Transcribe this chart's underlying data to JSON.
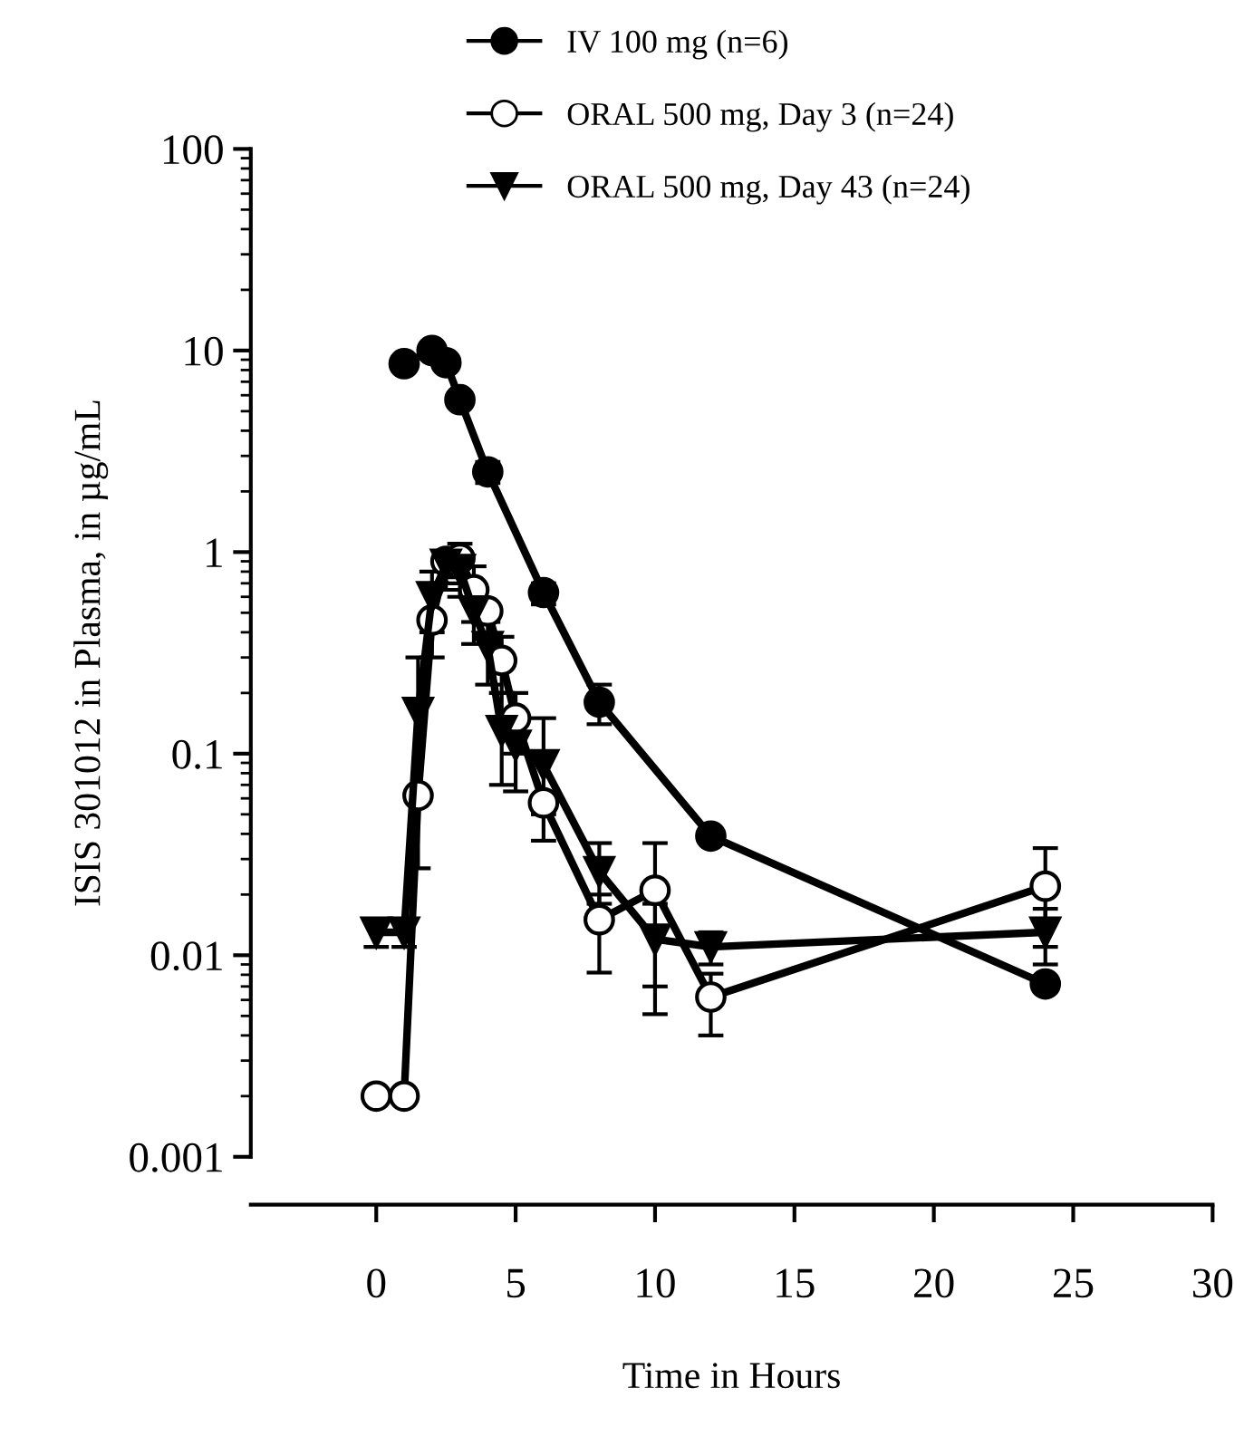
{
  "chart_data": {
    "type": "line",
    "xlabel": "Time in Hours",
    "ylabel": "ISIS 301012 in Plasma, in µg/mL",
    "log": "y",
    "xlim": [
      -4.5,
      30
    ],
    "xticks": [
      0,
      5,
      10,
      15,
      20,
      25,
      30
    ],
    "ylim": [
      0.001,
      100
    ],
    "yticks": [
      0.001,
      0.01,
      0.1,
      1,
      10,
      100
    ],
    "grid": false,
    "legend": "top",
    "line_style": "solid",
    "series": [
      {
        "name": "IV 100 mg (n=6)",
        "color": "#000000",
        "marker": "circle",
        "x": [
          1,
          2,
          2.5,
          3,
          4,
          6,
          8,
          12,
          24
        ],
        "values": [
          8.6,
          10,
          8.7,
          5.7,
          2.5,
          0.63,
          0.18,
          0.039,
          0.0072
        ],
        "errors": [
          null,
          null,
          null,
          null,
          [
            2.2,
            2.8
          ],
          [
            0.55,
            0.7
          ],
          [
            0.14,
            0.22
          ],
          null,
          null
        ]
      },
      {
        "name": "ORAL 500 mg, Day 3 (n=24)",
        "color": "#000000",
        "marker": "circle",
        "x": [
          0,
          1,
          1.5,
          2,
          2.5,
          3,
          3.5,
          4,
          4.5,
          5,
          6,
          8,
          10,
          12,
          24
        ],
        "values": [
          0.002,
          0.002,
          0.062,
          0.46,
          0.9,
          0.93,
          0.65,
          0.51,
          0.29,
          0.15,
          0.057,
          0.015,
          0.021,
          0.0062,
          0.022
        ],
        "errors": [
          null,
          null,
          null,
          [
            0.3,
            0.46
          ],
          [
            0.7,
            1.0
          ],
          [
            0.75,
            1.1
          ],
          [
            0.45,
            0.85
          ],
          null,
          [
            0.2,
            0.38
          ],
          [
            0.1,
            0.2
          ],
          [
            0.037,
            0.057
          ],
          [
            0.0082,
            0.02
          ],
          [
            0.0051,
            0.036
          ],
          [
            0.004,
            0.0081
          ],
          [
            0.011,
            0.034
          ]
        ]
      },
      {
        "name": "ORAL 500 mg, Day 43 (n=24)",
        "color": "#000000",
        "marker": "triangle",
        "x": [
          0,
          1,
          1.5,
          2,
          2.5,
          3,
          3.5,
          4,
          4.5,
          5,
          6,
          8,
          10,
          12,
          24
        ],
        "values": [
          0.013,
          0.013,
          0.16,
          0.6,
          0.87,
          0.82,
          0.51,
          0.34,
          0.13,
          0.11,
          0.088,
          0.026,
          0.012,
          0.011,
          0.013
        ],
        "errors": [
          [
            0.011,
            0.015
          ],
          [
            0.011,
            0.015
          ],
          [
            0.027,
            0.3
          ],
          [
            0.4,
            0.8
          ],
          [
            0.65,
            1.0
          ],
          [
            0.6,
            1.0
          ],
          [
            0.35,
            0.65
          ],
          [
            0.22,
            0.45
          ],
          [
            0.07,
            0.2
          ],
          [
            0.065,
            0.16
          ],
          [
            0.05,
            0.15
          ],
          [
            0.018,
            0.036
          ],
          [
            0.007,
            0.018
          ],
          [
            0.009,
            0.013
          ],
          [
            0.009,
            0.017
          ]
        ]
      }
    ]
  }
}
